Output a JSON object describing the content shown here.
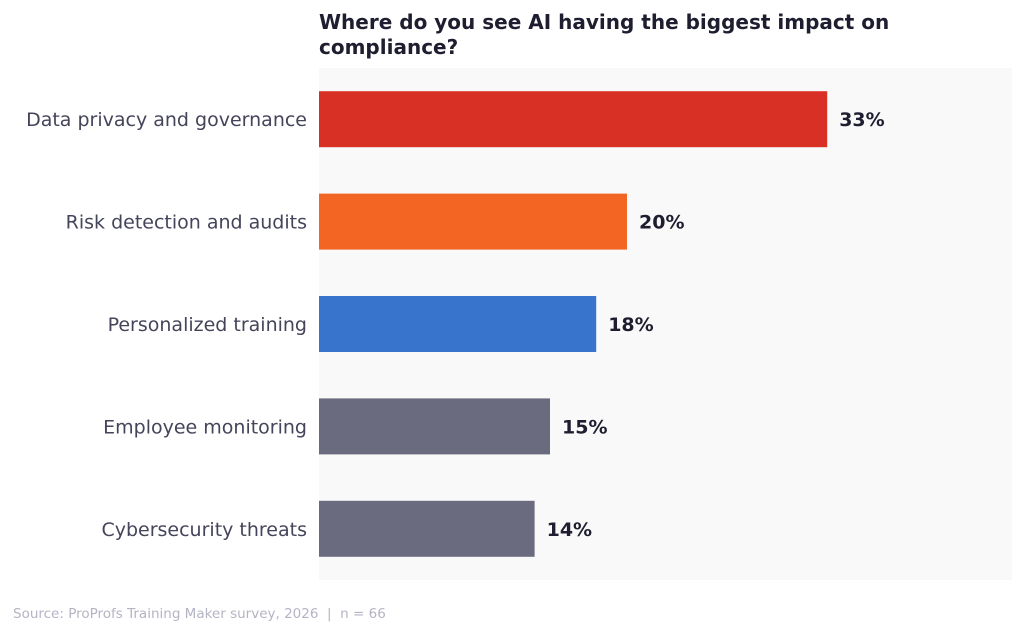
{
  "chart_data": {
    "type": "bar",
    "orientation": "horizontal",
    "title": "Where do you see AI having the biggest impact on compliance?",
    "categories": [
      "Data privacy and governance",
      "Risk detection and audits",
      "Personalized training",
      "Employee monitoring",
      "Cybersecurity threats"
    ],
    "values": [
      33,
      20,
      18,
      15,
      14
    ],
    "data_labels": [
      "33%",
      "20%",
      "18%",
      "15%",
      "14%"
    ],
    "colors": [
      "#d93025",
      "#f26522",
      "#3874cb",
      "#6b6b80",
      "#6b6b80"
    ],
    "xlim": [
      0,
      45
    ],
    "xlabel": "",
    "ylabel": "",
    "grid": false,
    "plot_background": "#f9f9f9"
  },
  "footer": {
    "source": "Source: ProProfs Training Maker survey, 2026  |  n = 66"
  }
}
